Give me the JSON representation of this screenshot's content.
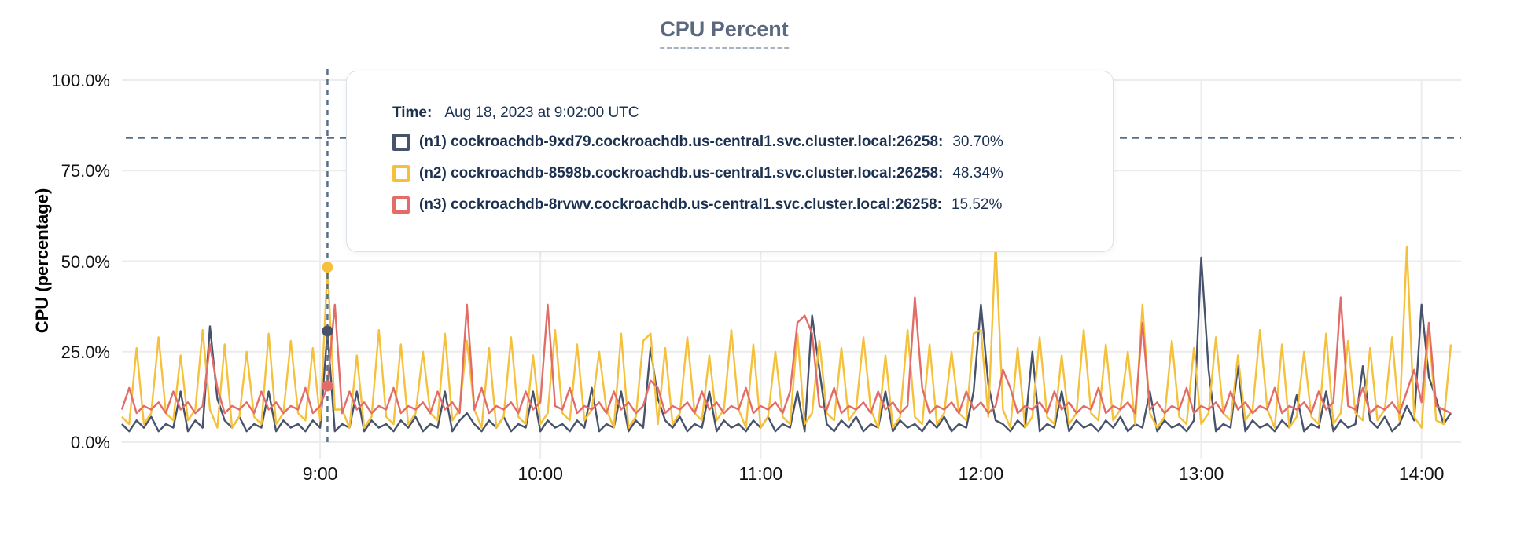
{
  "colors": {
    "navy": "#47526b",
    "yellow": "#f5c13c",
    "red": "#e26d68",
    "grid": "#ececec",
    "dashed_line": "#577089",
    "text_navy": "#1c3150",
    "title": "#5a6880",
    "tooltip_border": "#dce2e9"
  },
  "tooltip": {
    "time_label": "Time:",
    "time_value": "Aug 18, 2023 at 9:02:00 UTC",
    "rows": [
      {
        "swatch": "navy",
        "label": "(n1) cockroachdb-9xd79.cockroachdb.us-central1.svc.cluster.local:26258:",
        "value": "30.70%"
      },
      {
        "swatch": "yellow",
        "label": "(n2) cockroachdb-8598b.cockroachdb.us-central1.svc.cluster.local:26258:",
        "value": "48.34%"
      },
      {
        "swatch": "red",
        "label": "(n3) cockroachdb-8rvwv.cockroachdb.us-central1.svc.cluster.local:26258:",
        "value": "15.52%"
      }
    ]
  },
  "chart_data": {
    "type": "line",
    "title": "CPU Percent",
    "ylabel": "CPU (percentage)",
    "ylim": [
      0,
      100
    ],
    "grid": true,
    "start_time": "08:06",
    "end_time": "14:08",
    "step_minutes": 2,
    "threshold_pct": 84,
    "cursor": {
      "index": 28,
      "time": "9:02:00 UTC"
    },
    "y_ticks": [
      {
        "label": "100.0%",
        "v": 100
      },
      {
        "label": "75.0%",
        "v": 75
      },
      {
        "label": "50.0%",
        "v": 50
      },
      {
        "label": "25.0%",
        "v": 25
      },
      {
        "label": "0.0%",
        "v": 0
      }
    ],
    "x_ticks": [
      {
        "label": "9:00",
        "i": 27
      },
      {
        "label": "10:00",
        "i": 57
      },
      {
        "label": "11:00",
        "i": 87
      },
      {
        "label": "12:00",
        "i": 117
      },
      {
        "label": "13:00",
        "i": 147
      },
      {
        "label": "14:00",
        "i": 177
      }
    ],
    "series": [
      {
        "name": "(n1) cockroachdb-9xd79.cockroachdb.us-central1.svc.cluster.local:26258",
        "color_key": "navy",
        "cursor_value": 30.7,
        "values": [
          5,
          3,
          6,
          4,
          7,
          3,
          5,
          4,
          14,
          3,
          6,
          4,
          32,
          12,
          6,
          4,
          7,
          3,
          5,
          4,
          14,
          3,
          6,
          4,
          5,
          3,
          6,
          4,
          30.7,
          3,
          5,
          4,
          14,
          3,
          6,
          4,
          5,
          3,
          6,
          4,
          7,
          3,
          5,
          4,
          14,
          3,
          6,
          8,
          5,
          3,
          6,
          4,
          7,
          3,
          5,
          4,
          14,
          3,
          6,
          4,
          5,
          3,
          6,
          4,
          15,
          3,
          5,
          4,
          14,
          3,
          6,
          4,
          26,
          12,
          6,
          4,
          7,
          3,
          5,
          4,
          14,
          3,
          6,
          4,
          5,
          3,
          6,
          4,
          7,
          3,
          5,
          4,
          14,
          3,
          35,
          20,
          5,
          3,
          6,
          4,
          7,
          3,
          5,
          4,
          14,
          3,
          6,
          4,
          5,
          3,
          6,
          4,
          7,
          3,
          5,
          4,
          14,
          38,
          16,
          6,
          5,
          3,
          6,
          4,
          25,
          3,
          5,
          4,
          14,
          3,
          6,
          4,
          5,
          3,
          6,
          4,
          7,
          3,
          5,
          4,
          14,
          3,
          6,
          4,
          5,
          3,
          6,
          51,
          20,
          3,
          5,
          4,
          21,
          3,
          6,
          4,
          5,
          3,
          6,
          4,
          13,
          3,
          5,
          4,
          14,
          3,
          6,
          4,
          5,
          21,
          6,
          4,
          7,
          3,
          5,
          10,
          6,
          38,
          18,
          12,
          5,
          8
        ]
      },
      {
        "name": "(n2) cockroachdb-8598b.cockroachdb.us-central1.svc.cluster.local:26258",
        "color_key": "yellow",
        "cursor_value": 48.34,
        "values": [
          7,
          5,
          26,
          5,
          8,
          29,
          8,
          6,
          24,
          6,
          9,
          31,
          9,
          4,
          27,
          4,
          7,
          25,
          7,
          5,
          30,
          5,
          8,
          28,
          8,
          6,
          26,
          6,
          48.34,
          9,
          9,
          4,
          24,
          4,
          7,
          31,
          7,
          5,
          27,
          5,
          8,
          25,
          8,
          6,
          30,
          6,
          9,
          28,
          9,
          4,
          26,
          4,
          7,
          29,
          7,
          5,
          24,
          5,
          8,
          31,
          8,
          6,
          27,
          6,
          9,
          25,
          9,
          4,
          30,
          4,
          7,
          28,
          30,
          5,
          26,
          5,
          8,
          29,
          8,
          6,
          24,
          6,
          9,
          31,
          9,
          4,
          27,
          4,
          7,
          25,
          7,
          5,
          30,
          5,
          8,
          28,
          8,
          6,
          26,
          6,
          9,
          29,
          9,
          4,
          24,
          4,
          7,
          31,
          7,
          5,
          27,
          5,
          8,
          25,
          8,
          6,
          30,
          31,
          7,
          55,
          9,
          4,
          26,
          4,
          7,
          29,
          7,
          5,
          24,
          5,
          8,
          31,
          8,
          6,
          27,
          6,
          9,
          25,
          5,
          38,
          8,
          4,
          7,
          28,
          7,
          5,
          26,
          5,
          8,
          29,
          8,
          6,
          24,
          6,
          9,
          31,
          9,
          4,
          27,
          4,
          7,
          25,
          7,
          5,
          30,
          5,
          8,
          28,
          8,
          6,
          26,
          6,
          9,
          29,
          6,
          54,
          7,
          4,
          31,
          6,
          5,
          27
        ]
      },
      {
        "name": "(n3) cockroachdb-8rvwv.cockroachdb.us-central1.svc.cluster.local:26258",
        "color_key": "red",
        "cursor_value": 15.52,
        "values": [
          9,
          15,
          8,
          10,
          9,
          11,
          8,
          14,
          9,
          11,
          8,
          10,
          27,
          15,
          8,
          10,
          9,
          11,
          8,
          14,
          9,
          11,
          8,
          10,
          9,
          15,
          8,
          10,
          15.52,
          38,
          8,
          14,
          9,
          11,
          8,
          10,
          9,
          15,
          8,
          10,
          9,
          11,
          8,
          14,
          9,
          11,
          8,
          38,
          9,
          15,
          8,
          10,
          9,
          11,
          8,
          14,
          9,
          11,
          38,
          10,
          9,
          15,
          8,
          10,
          9,
          11,
          8,
          14,
          9,
          11,
          8,
          10,
          17,
          15,
          8,
          10,
          9,
          11,
          8,
          14,
          9,
          11,
          8,
          10,
          9,
          15,
          8,
          10,
          9,
          11,
          8,
          14,
          33,
          35,
          30,
          10,
          9,
          15,
          8,
          10,
          9,
          11,
          8,
          14,
          9,
          11,
          8,
          10,
          40,
          15,
          8,
          10,
          9,
          11,
          8,
          14,
          9,
          11,
          8,
          10,
          20,
          15,
          8,
          10,
          9,
          11,
          8,
          14,
          9,
          11,
          8,
          10,
          9,
          15,
          8,
          10,
          9,
          11,
          8,
          33,
          9,
          11,
          8,
          10,
          9,
          15,
          8,
          10,
          9,
          11,
          8,
          14,
          9,
          11,
          8,
          10,
          9,
          15,
          8,
          10,
          9,
          11,
          8,
          14,
          9,
          11,
          40,
          10,
          9,
          15,
          8,
          10,
          9,
          11,
          8,
          14,
          20,
          11,
          33,
          10,
          9,
          8
        ]
      }
    ]
  }
}
